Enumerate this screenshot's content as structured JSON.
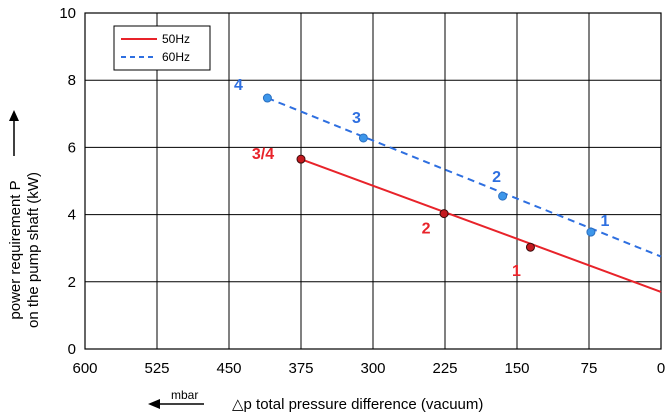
{
  "chart_data": {
    "type": "line",
    "xlabel": "△p total pressure difference (vacuum)",
    "x_unit": "mbar",
    "ylabel_line1": "power requirement P",
    "ylabel_line2": "on the pump shaft (kW)",
    "xlim": [
      600,
      0
    ],
    "ylim": [
      0,
      10
    ],
    "x_ticks": [
      600,
      525,
      450,
      375,
      300,
      225,
      150,
      75,
      0
    ],
    "y_ticks": [
      0,
      2,
      4,
      6,
      8,
      10
    ],
    "x_tick_labels": [
      "600",
      "525",
      "450",
      "375",
      "300",
      "225",
      "150",
      "75",
      "0"
    ],
    "y_tick_labels": [
      "0",
      "2",
      "4",
      "6",
      "8",
      "10"
    ],
    "grid": true,
    "legend_position": "top-left",
    "series": [
      {
        "name": "50Hz",
        "color": "#e8232a",
        "style": "solid",
        "line": [
          [
            375,
            5.65
          ],
          [
            0,
            1.7
          ]
        ],
        "points": [
          {
            "x": 375,
            "y": 5.65,
            "label": "3/4"
          },
          {
            "x": 226,
            "y": 4.03,
            "label": "2"
          },
          {
            "x": 136,
            "y": 3.03,
            "label": "1"
          }
        ]
      },
      {
        "name": "60Hz",
        "color": "#2e6fe0",
        "style": "dashed",
        "line": [
          [
            410,
            7.47
          ],
          [
            0,
            2.75
          ]
        ],
        "points": [
          {
            "x": 410,
            "y": 7.47,
            "label": "4"
          },
          {
            "x": 310,
            "y": 6.28,
            "label": "3"
          },
          {
            "x": 165,
            "y": 4.55,
            "label": "2"
          },
          {
            "x": 73,
            "y": 3.48,
            "label": "1"
          }
        ]
      }
    ]
  }
}
